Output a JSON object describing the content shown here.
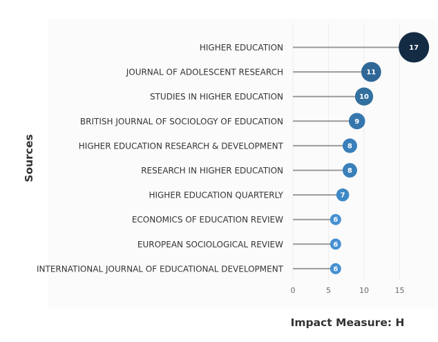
{
  "chart_data": {
    "type": "scatter",
    "subtype": "lollipop",
    "title": "",
    "xlabel": "Impact Measure: H",
    "ylabel": "Sources",
    "xlim": [
      0,
      18
    ],
    "xticks": [
      0,
      5,
      10,
      15
    ],
    "grid": "vertical",
    "legend": "none",
    "categories": [
      "HIGHER EDUCATION",
      "JOURNAL OF ADOLESCENT RESEARCH",
      "STUDIES IN HIGHER EDUCATION",
      "BRITISH JOURNAL OF SOCIOLOGY OF EDUCATION",
      "HIGHER EDUCATION RESEARCH & DEVELOPMENT",
      "RESEARCH IN HIGHER EDUCATION",
      "HIGHER EDUCATION QUARTERLY",
      "ECONOMICS OF EDUCATION REVIEW",
      "EUROPEAN SOCIOLOGICAL REVIEW",
      "INTERNATIONAL JOURNAL OF EDUCATIONAL DEVELOPMENT"
    ],
    "values": [
      17,
      11,
      10,
      9,
      8,
      8,
      7,
      6,
      6,
      6
    ],
    "value_labels": [
      "17",
      "11",
      "10",
      "9",
      "8",
      "8",
      "7",
      "6",
      "6",
      "6"
    ],
    "colors": [
      "#132b43",
      "#2f6797",
      "#32709f",
      "#3577ad",
      "#397fba",
      "#397fba",
      "#3f88c6",
      "#4591d2",
      "#4591d2",
      "#4591d2"
    ],
    "stem_color": "#999999",
    "panel_color": "#fbfbfb",
    "grid_color": "#ececec"
  }
}
